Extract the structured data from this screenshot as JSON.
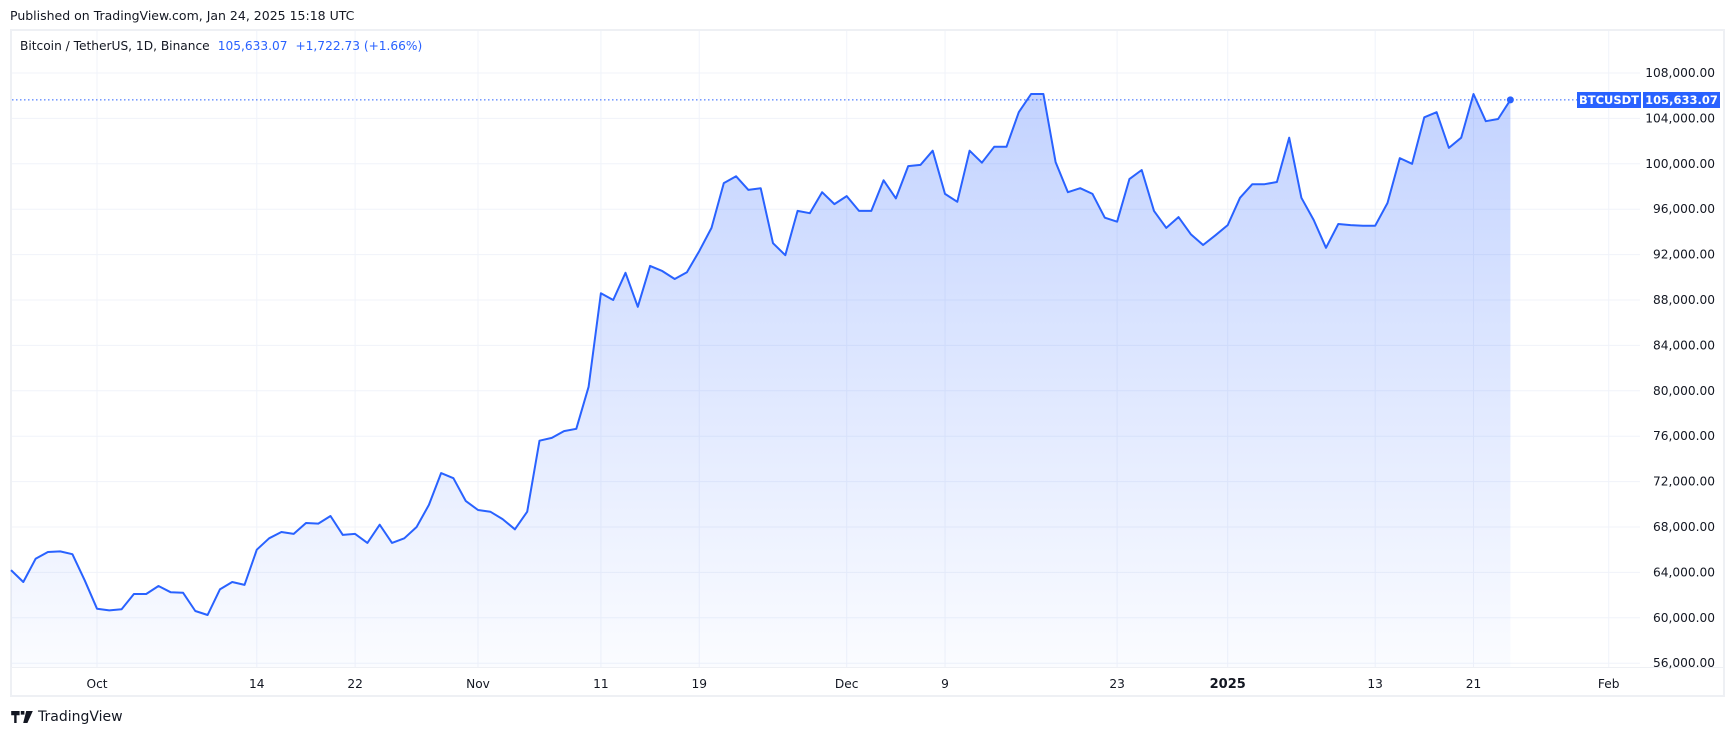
{
  "header": {
    "published": "Published on TradingView.com, Jan 24, 2025 15:18 UTC"
  },
  "legend": {
    "symbol": "Bitcoin / TetherUS, 1D, Binance",
    "last": "105,633.07",
    "change": "+1,722.73 (+1.66%)"
  },
  "price_line": {
    "ticker": "BTCUSDT",
    "value": "105,633.07"
  },
  "footer": {
    "brand": "TradingView"
  },
  "colors": {
    "line": "#2962ff",
    "fill_top": "#2962ff",
    "grid": "#f0f3fa",
    "text": "#131722"
  },
  "chart_data": {
    "type": "area",
    "title": "Bitcoin / TetherUS, 1D, Binance",
    "xlabel": "",
    "ylabel": "",
    "start_date": "2024-09-24",
    "end_date": "2025-01-24",
    "ylim": [
      56000,
      108000
    ],
    "grid": true,
    "legend_position": "top-left",
    "y_ticks": [
      "108,000.00",
      "104,000.00",
      "100,000.00",
      "96,000.00",
      "92,000.00",
      "88,000.00",
      "84,000.00",
      "80,000.00",
      "76,000.00",
      "72,000.00",
      "68,000.00",
      "64,000.00",
      "60,000.00",
      "56,000.00"
    ],
    "y_tick_values": [
      108000,
      104000,
      100000,
      96000,
      92000,
      88000,
      84000,
      80000,
      76000,
      72000,
      68000,
      64000,
      60000,
      56000
    ],
    "x_ticks": [
      {
        "label": "Oct",
        "index": 7,
        "bold": false
      },
      {
        "label": "14",
        "index": 20,
        "bold": false
      },
      {
        "label": "22",
        "index": 28,
        "bold": false
      },
      {
        "label": "Nov",
        "index": 38,
        "bold": false
      },
      {
        "label": "11",
        "index": 48,
        "bold": false
      },
      {
        "label": "19",
        "index": 56,
        "bold": false
      },
      {
        "label": "Dec",
        "index": 68,
        "bold": false
      },
      {
        "label": "9",
        "index": 76,
        "bold": false
      },
      {
        "label": "23",
        "index": 90,
        "bold": false
      },
      {
        "label": "2025",
        "index": 99,
        "bold": true
      },
      {
        "label": "13",
        "index": 111,
        "bold": false
      },
      {
        "label": "21",
        "index": 119,
        "bold": false
      },
      {
        "label": "Feb",
        "index": 130,
        "bold": false
      }
    ],
    "series": [
      {
        "name": "BTCUSDT close",
        "values": [
          64200,
          63150,
          65200,
          65800,
          65850,
          65600,
          63300,
          60800,
          60650,
          60750,
          62100,
          62100,
          62800,
          62250,
          62200,
          60600,
          60250,
          62500,
          63150,
          62900,
          66000,
          67000,
          67560,
          67390,
          68350,
          68300,
          68970,
          67300,
          67390,
          66600,
          68200,
          66600,
          67000,
          68000,
          69950,
          72750,
          72300,
          70300,
          69500,
          69350,
          68700,
          67800,
          69350,
          75600,
          75850,
          76450,
          76650,
          80350,
          88600,
          88000,
          90400,
          87400,
          91000,
          90550,
          89850,
          90450,
          92300,
          94350,
          98300,
          98900,
          97700,
          97850,
          93000,
          91950,
          95850,
          95650,
          97500,
          96450,
          97150,
          95850,
          95850,
          98550,
          96950,
          99800,
          99900,
          101150,
          97350,
          96650,
          101150,
          100100,
          101500,
          101500,
          104550,
          106150,
          106150,
          100150,
          97500,
          97850,
          97350,
          95250,
          94900,
          98650,
          99450,
          95850,
          94350,
          95300,
          93800,
          92850,
          93700,
          94600,
          97000,
          98200,
          98200,
          98400,
          102300,
          97000,
          95050,
          92600,
          94700,
          94600,
          94550,
          94550,
          96550,
          100500,
          100000,
          104100,
          104550,
          101400,
          102300,
          106150,
          103750,
          103950,
          105633.07
        ]
      }
    ],
    "last_value": 105633.07,
    "change": 1722.73,
    "change_pct": 1.66
  }
}
